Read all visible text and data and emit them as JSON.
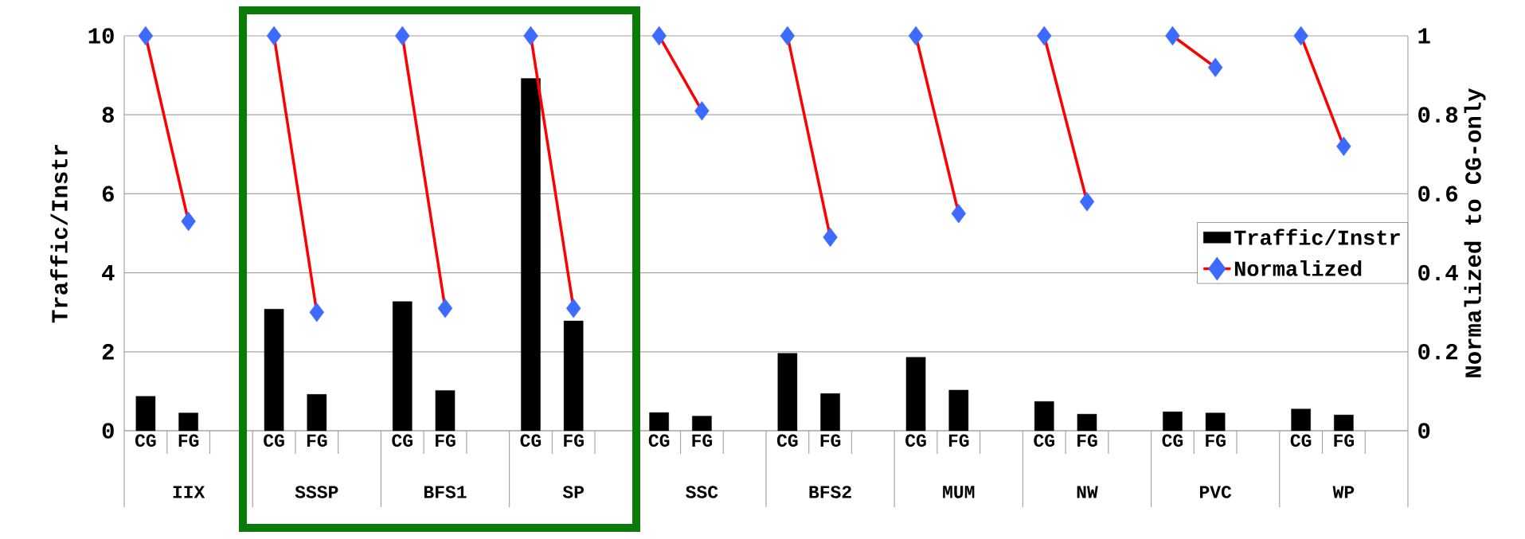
{
  "chart_data": {
    "type": "bar",
    "ylabel": "Traffic/Instr",
    "y2label": "Normalized to CG-only",
    "categories": [
      "CG",
      "FG",
      null,
      "CG",
      "FG",
      null,
      "CG",
      "FG",
      null,
      "CG",
      "FG",
      null,
      "CG",
      "FG",
      null,
      "CG",
      "FG",
      null,
      "CG",
      "FG",
      null,
      "CG",
      "FG",
      null,
      "CG",
      "FG",
      null,
      "CG",
      "FG",
      null
    ],
    "annotations": [
      "IIX",
      "SSSP",
      "BFS1",
      "SP",
      "SSC",
      "BFS2",
      "MUM",
      "NW",
      "PVC",
      "WP"
    ],
    "series": [
      {
        "name": "Traffic/Instr",
        "color": "#000000",
        "values": [
          0.87,
          0.45,
          null,
          3.08,
          0.92,
          null,
          3.27,
          1.02,
          null,
          8.92,
          2.78,
          null,
          0.46,
          0.37,
          null,
          1.96,
          0.94,
          null,
          1.86,
          1.03,
          null,
          0.74,
          0.42,
          null,
          0.48,
          0.45,
          null,
          0.55,
          0.4,
          null
        ]
      },
      {
        "name": "Normalized",
        "type": "line",
        "axis": "y2",
        "color": "#ff0000",
        "marker": "diamond",
        "colors": [
          "#3d6bff",
          "#3d6bff",
          null,
          "#3d6bff",
          "#3d6bff",
          null,
          "#3d6bff",
          "#3d6bff",
          null,
          "#3d6bff",
          "#3d6bff",
          null,
          "#3d6bff",
          "#3d6bff",
          null,
          "#3d6bff",
          "#3d6bff",
          null,
          "#3d6bff",
          "#3d6bff",
          null,
          "#3d6bff",
          "#3d6bff",
          null,
          "#3d6bff",
          "#3d6bff",
          null,
          "#3d6bff",
          "#3d6bff",
          null
        ],
        "values": [
          1,
          0.53,
          null,
          1,
          0.3,
          null,
          1,
          0.31,
          null,
          1,
          0.31,
          null,
          1,
          0.81,
          null,
          1,
          0.49,
          null,
          1,
          0.55,
          null,
          1,
          0.58,
          null,
          1,
          0.92,
          null,
          1,
          0.72,
          null
        ]
      }
    ],
    "ylim": [
      0,
      10
    ],
    "yticks": [
      0,
      2,
      4,
      6,
      8,
      10
    ],
    "y2lim": [
      0,
      1
    ],
    "y2ticks": [
      0,
      0.2,
      0.4,
      0.6,
      0.8,
      1
    ],
    "grid": "y",
    "legend": "right"
  }
}
